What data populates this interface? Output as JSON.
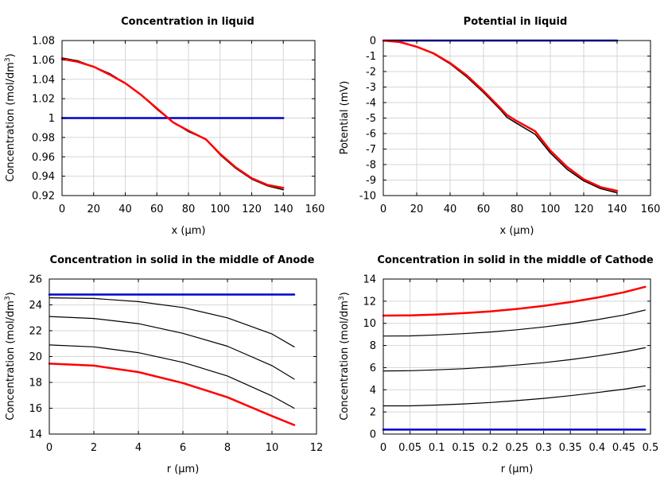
{
  "colors": {
    "initial": "#0000cc",
    "final": "#ff0000",
    "intermediate": "#000000"
  },
  "chart_data": [
    {
      "type": "line",
      "title": "Concentration in liquid",
      "xlabel": "x (µm)",
      "ylabel": "Concentration (mol/dm³)",
      "xlim": [
        0,
        160
      ],
      "ylim": [
        0.92,
        1.08
      ],
      "xticks": [
        0,
        20,
        40,
        60,
        80,
        100,
        120,
        140,
        160
      ],
      "yticks": [
        0.92,
        0.94,
        0.96,
        0.98,
        1,
        1.02,
        1.04,
        1.06,
        1.08
      ],
      "xtick_labels": [
        "0",
        "20",
        "40",
        "60",
        "80",
        "100",
        "120",
        "140",
        "160"
      ],
      "ytick_labels": [
        "0.92",
        "0.94",
        "0.96",
        "0.98",
        "1",
        "1.02",
        "1.04",
        "1.06",
        "1.08"
      ],
      "grid": true,
      "series": [
        {
          "color": "#0000cc",
          "width": 2.5,
          "x": [
            0,
            140
          ],
          "y": [
            1.0,
            1.0
          ]
        },
        {
          "color": "#000000",
          "width": 1.5,
          "x": [
            0,
            10,
            20,
            30,
            40,
            50,
            60,
            70,
            73,
            80,
            91,
            100,
            110,
            120,
            130,
            140
          ],
          "y": [
            1.062,
            1.059,
            1.053,
            1.046,
            1.036,
            1.024,
            1.009,
            0.996,
            0.993,
            0.986,
            0.978,
            0.962,
            0.948,
            0.937,
            0.93,
            0.926
          ]
        },
        {
          "color": "#ff0000",
          "width": 2.5,
          "x": [
            0,
            10,
            20,
            30,
            40,
            50,
            60,
            70,
            73,
            80,
            91,
            100,
            110,
            120,
            130,
            140
          ],
          "y": [
            1.061,
            1.058,
            1.053,
            1.045,
            1.036,
            1.024,
            1.01,
            0.996,
            0.993,
            0.987,
            0.978,
            0.963,
            0.949,
            0.938,
            0.931,
            0.928
          ]
        }
      ]
    },
    {
      "type": "line",
      "title": "Potential in liquid",
      "xlabel": "x (µm)",
      "ylabel": "Potential (mV)",
      "xlim": [
        0,
        160
      ],
      "ylim": [
        -10,
        0
      ],
      "xticks": [
        0,
        20,
        40,
        60,
        80,
        100,
        120,
        140,
        160
      ],
      "yticks": [
        0,
        -1,
        -2,
        -3,
        -4,
        -5,
        -6,
        -7,
        -8,
        -9,
        -10
      ],
      "xtick_labels": [
        "0",
        "20",
        "40",
        "60",
        "80",
        "100",
        "120",
        "140",
        "160"
      ],
      "ytick_labels": [
        "0",
        "-1",
        "-2",
        "-3",
        "-4",
        "-5",
        "-6",
        "-7",
        "-8",
        "-9",
        "-10"
      ],
      "grid": true,
      "series": [
        {
          "color": "#0000cc",
          "width": 2.5,
          "x": [
            0,
            140
          ],
          "y": [
            0,
            0
          ]
        },
        {
          "color": "#000000",
          "width": 1.5,
          "x": [
            0,
            10,
            20,
            30,
            40,
            50,
            60,
            70,
            74,
            80,
            91,
            100,
            110,
            120,
            130,
            140
          ],
          "y": [
            0,
            -0.1,
            -0.4,
            -0.85,
            -1.5,
            -2.35,
            -3.35,
            -4.45,
            -4.95,
            -5.35,
            -6.05,
            -7.25,
            -8.3,
            -9.05,
            -9.55,
            -9.82
          ]
        },
        {
          "color": "#ff0000",
          "width": 2.5,
          "x": [
            0,
            10,
            20,
            30,
            40,
            50,
            60,
            70,
            74,
            80,
            91,
            100,
            110,
            120,
            130,
            140
          ],
          "y": [
            0,
            -0.1,
            -0.4,
            -0.82,
            -1.45,
            -2.25,
            -3.25,
            -4.35,
            -4.8,
            -5.2,
            -5.85,
            -7.1,
            -8.15,
            -8.95,
            -9.45,
            -9.7
          ]
        }
      ]
    },
    {
      "type": "line",
      "title": "Concentration in solid in the middle of Anode",
      "xlabel": "r (µm)",
      "ylabel": "Concentration (mol/dm³)",
      "xlim": [
        0,
        12
      ],
      "ylim": [
        14,
        26
      ],
      "xticks": [
        0,
        2,
        4,
        6,
        8,
        10,
        12
      ],
      "yticks": [
        14,
        16,
        18,
        20,
        22,
        24,
        26
      ],
      "xtick_labels": [
        "0",
        "2",
        "4",
        "6",
        "8",
        "10",
        "12"
      ],
      "ytick_labels": [
        "14",
        "16",
        "18",
        "20",
        "22",
        "24",
        "26"
      ],
      "grid": true,
      "series": [
        {
          "color": "#0000cc",
          "width": 2.5,
          "x": [
            0,
            11
          ],
          "y": [
            24.8,
            24.8
          ]
        },
        {
          "color": "#000000",
          "width": 1.2,
          "x": [
            0,
            2,
            4,
            6,
            8,
            10,
            11
          ],
          "y": [
            24.55,
            24.5,
            24.25,
            23.8,
            23.0,
            21.75,
            20.75
          ]
        },
        {
          "color": "#000000",
          "width": 1.2,
          "x": [
            0,
            2,
            4,
            6,
            8,
            10,
            11
          ],
          "y": [
            23.1,
            22.95,
            22.55,
            21.8,
            20.8,
            19.3,
            18.25
          ]
        },
        {
          "color": "#000000",
          "width": 1.2,
          "x": [
            0,
            2,
            4,
            6,
            8,
            10,
            11
          ],
          "y": [
            20.9,
            20.75,
            20.3,
            19.55,
            18.5,
            16.95,
            16.0
          ]
        },
        {
          "color": "#ff0000",
          "width": 2.5,
          "x": [
            0,
            2,
            4,
            6,
            8,
            10,
            11
          ],
          "y": [
            19.45,
            19.3,
            18.8,
            17.95,
            16.85,
            15.4,
            14.7
          ]
        }
      ]
    },
    {
      "type": "line",
      "title": "Concentration in solid in the middle of Cathode",
      "xlabel": "r (µm)",
      "ylabel": "Concentration (mol/dm³)",
      "xlim": [
        0,
        0.5
      ],
      "ylim": [
        0,
        14
      ],
      "xticks": [
        0,
        0.05,
        0.1,
        0.15,
        0.2,
        0.25,
        0.3,
        0.35,
        0.4,
        0.45,
        0.5
      ],
      "yticks": [
        0,
        2,
        4,
        6,
        8,
        10,
        12,
        14
      ],
      "xtick_labels": [
        "0",
        "0.05",
        "0.1",
        "0.15",
        "0.2",
        "0.25",
        "0.3",
        "0.35",
        "0.4",
        "0.45",
        "0.5"
      ],
      "ytick_labels": [
        "0",
        "2",
        "4",
        "6",
        "8",
        "10",
        "12",
        "14"
      ],
      "grid": true,
      "series": [
        {
          "color": "#0000cc",
          "width": 2.5,
          "x": [
            0,
            0.49
          ],
          "y": [
            0.4,
            0.4
          ]
        },
        {
          "color": "#000000",
          "width": 1.2,
          "x": [
            0,
            0.05,
            0.1,
            0.15,
            0.2,
            0.25,
            0.3,
            0.35,
            0.4,
            0.45,
            0.49
          ],
          "y": [
            2.55,
            2.55,
            2.62,
            2.72,
            2.85,
            3.02,
            3.22,
            3.47,
            3.75,
            4.05,
            4.35
          ]
        },
        {
          "color": "#000000",
          "width": 1.2,
          "x": [
            0,
            0.05,
            0.1,
            0.15,
            0.2,
            0.25,
            0.3,
            0.35,
            0.4,
            0.45,
            0.49
          ],
          "y": [
            5.7,
            5.72,
            5.8,
            5.9,
            6.05,
            6.23,
            6.45,
            6.72,
            7.05,
            7.42,
            7.8
          ]
        },
        {
          "color": "#000000",
          "width": 1.2,
          "x": [
            0,
            0.05,
            0.1,
            0.15,
            0.2,
            0.25,
            0.3,
            0.35,
            0.4,
            0.45,
            0.49
          ],
          "y": [
            8.85,
            8.87,
            8.95,
            9.07,
            9.22,
            9.42,
            9.67,
            9.97,
            10.33,
            10.75,
            11.2
          ]
        },
        {
          "color": "#ff0000",
          "width": 2.5,
          "x": [
            0,
            0.05,
            0.1,
            0.15,
            0.2,
            0.25,
            0.3,
            0.35,
            0.4,
            0.45,
            0.49
          ],
          "y": [
            10.7,
            10.72,
            10.8,
            10.92,
            11.08,
            11.3,
            11.58,
            11.92,
            12.32,
            12.8,
            13.3
          ]
        }
      ]
    }
  ]
}
